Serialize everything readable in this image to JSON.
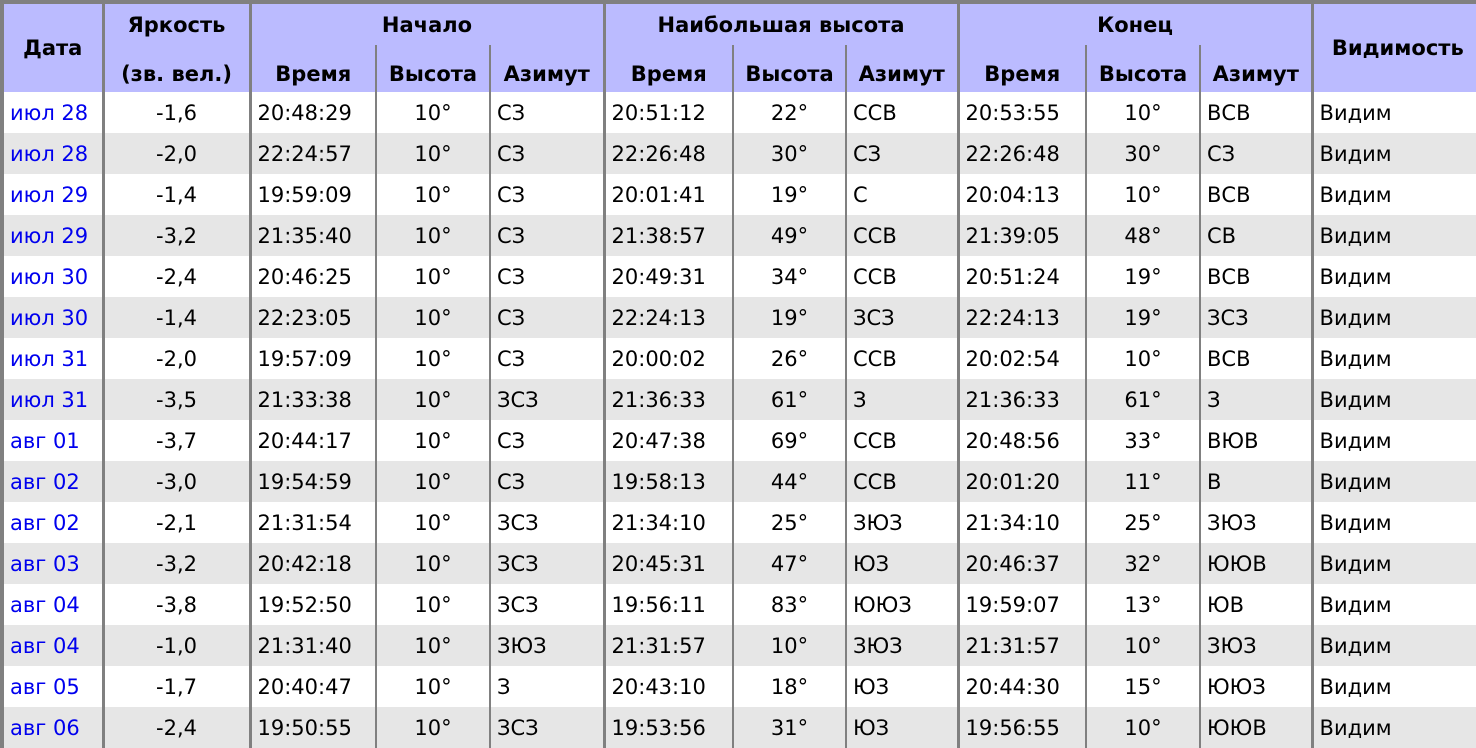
{
  "headers": {
    "date": "Дата",
    "brightness_1": "Яркость",
    "brightness_2": "(зв. вел.)",
    "start": "Начало",
    "max": "Наибольшая высота",
    "end": "Конец",
    "visibility": "Видимость",
    "time": "Время",
    "altitude": "Высота",
    "azimuth": "Азимут"
  },
  "rows": [
    [
      "июл 28",
      "-1,6",
      "20:48:29",
      "10°",
      "СЗ",
      "20:51:12",
      "22°",
      "ССВ",
      "20:53:55",
      "10°",
      "ВСВ",
      "Видим"
    ],
    [
      "июл 28",
      "-2,0",
      "22:24:57",
      "10°",
      "СЗ",
      "22:26:48",
      "30°",
      "СЗ",
      "22:26:48",
      "30°",
      "СЗ",
      "Видим"
    ],
    [
      "июл 29",
      "-1,4",
      "19:59:09",
      "10°",
      "СЗ",
      "20:01:41",
      "19°",
      "С",
      "20:04:13",
      "10°",
      "ВСВ",
      "Видим"
    ],
    [
      "июл 29",
      "-3,2",
      "21:35:40",
      "10°",
      "СЗ",
      "21:38:57",
      "49°",
      "ССВ",
      "21:39:05",
      "48°",
      "СВ",
      "Видим"
    ],
    [
      "июл 30",
      "-2,4",
      "20:46:25",
      "10°",
      "СЗ",
      "20:49:31",
      "34°",
      "ССВ",
      "20:51:24",
      "19°",
      "ВСВ",
      "Видим"
    ],
    [
      "июл 30",
      "-1,4",
      "22:23:05",
      "10°",
      "СЗ",
      "22:24:13",
      "19°",
      "ЗСЗ",
      "22:24:13",
      "19°",
      "ЗСЗ",
      "Видим"
    ],
    [
      "июл 31",
      "-2,0",
      "19:57:09",
      "10°",
      "СЗ",
      "20:00:02",
      "26°",
      "ССВ",
      "20:02:54",
      "10°",
      "ВСВ",
      "Видим"
    ],
    [
      "июл 31",
      "-3,5",
      "21:33:38",
      "10°",
      "ЗСЗ",
      "21:36:33",
      "61°",
      "З",
      "21:36:33",
      "61°",
      "З",
      "Видим"
    ],
    [
      "авг 01",
      "-3,7",
      "20:44:17",
      "10°",
      "СЗ",
      "20:47:38",
      "69°",
      "ССВ",
      "20:48:56",
      "33°",
      "ВЮВ",
      "Видим"
    ],
    [
      "авг 02",
      "-3,0",
      "19:54:59",
      "10°",
      "СЗ",
      "19:58:13",
      "44°",
      "ССВ",
      "20:01:20",
      "11°",
      "В",
      "Видим"
    ],
    [
      "авг 02",
      "-2,1",
      "21:31:54",
      "10°",
      "ЗСЗ",
      "21:34:10",
      "25°",
      "ЗЮЗ",
      "21:34:10",
      "25°",
      "ЗЮЗ",
      "Видим"
    ],
    [
      "авг 03",
      "-3,2",
      "20:42:18",
      "10°",
      "ЗСЗ",
      "20:45:31",
      "47°",
      "ЮЗ",
      "20:46:37",
      "32°",
      "ЮЮВ",
      "Видим"
    ],
    [
      "авг 04",
      "-3,8",
      "19:52:50",
      "10°",
      "ЗСЗ",
      "19:56:11",
      "83°",
      "ЮЮЗ",
      "19:59:07",
      "13°",
      "ЮВ",
      "Видим"
    ],
    [
      "авг 04",
      "-1,0",
      "21:31:40",
      "10°",
      "ЗЮЗ",
      "21:31:57",
      "10°",
      "ЗЮЗ",
      "21:31:57",
      "10°",
      "ЗЮЗ",
      "Видим"
    ],
    [
      "авг 05",
      "-1,7",
      "20:40:47",
      "10°",
      "З",
      "20:43:10",
      "18°",
      "ЮЗ",
      "20:44:30",
      "15°",
      "ЮЮЗ",
      "Видим"
    ],
    [
      "авг 06",
      "-2,4",
      "19:50:55",
      "10°",
      "ЗСЗ",
      "19:53:56",
      "31°",
      "ЮЗ",
      "19:56:55",
      "10°",
      "ЮЮВ",
      "Видим"
    ]
  ]
}
